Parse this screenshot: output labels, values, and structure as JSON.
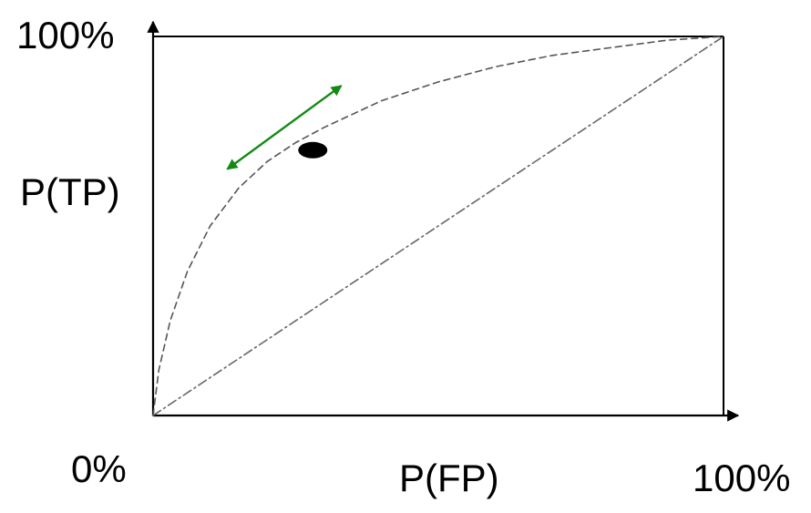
{
  "chart_data": {
    "type": "line",
    "xlabel": "P(FP)",
    "ylabel": "P(TP)",
    "xlim": [
      0,
      100
    ],
    "ylim": [
      0,
      100
    ],
    "x_tick_labels": {
      "min": "0%",
      "max": "100%"
    },
    "y_tick_labels": {
      "max": "100%"
    },
    "grid": false,
    "series": [
      {
        "style": "dashed",
        "x": [
          0,
          1,
          3,
          6,
          10,
          15,
          20,
          25,
          30,
          40,
          50,
          60,
          70,
          80,
          90,
          100
        ],
        "y": [
          0,
          12,
          25,
          38,
          50,
          60,
          67,
          72,
          76,
          83,
          88,
          92,
          95,
          97,
          99,
          100
        ]
      },
      {
        "style": "dashdot",
        "x": [
          0,
          100
        ],
        "y": [
          0,
          100
        ]
      }
    ],
    "annotations": [
      {
        "type": "point",
        "x": 28,
        "y": 70
      },
      {
        "type": "double-arrow",
        "from": [
          13,
          65
        ],
        "to": [
          33,
          87
        ],
        "color": "#138a13"
      }
    ]
  }
}
